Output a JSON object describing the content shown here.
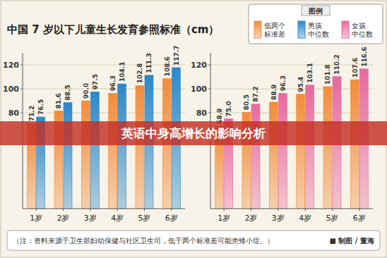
{
  "title": "中国 7 岁以下儿童生长发育参照标准（cm）",
  "legend_title": "图例",
  "banner": "英语中身高增长的影响分析",
  "note": "（注：资料来源于卫生部妇幼保健与社区卫生司，低于两个标准差可能患矮小症。）",
  "credit": "■ 制图 / 董海",
  "chart_data": [
    {
      "type": "bar",
      "categories": [
        "1岁",
        "2岁",
        "3岁",
        "4岁",
        "5岁",
        "6岁"
      ],
      "series": [
        {
          "name": "低两个标准差",
          "color": "#f28c3a",
          "values": [
            71.2,
            81.6,
            90.0,
            96.3,
            102.8,
            108.6
          ],
          "value_labels": [
            "71.2",
            "81.6",
            "90.0",
            "96.3",
            "102.8",
            "108.6"
          ]
        },
        {
          "name": "男孩中位数",
          "color": "#2c87c9",
          "values": [
            76.5,
            88.5,
            97.5,
            104.1,
            111.3,
            117.7
          ],
          "value_labels": [
            "76.5",
            "88.5",
            "97.5",
            "104.1",
            "111.3",
            "117.7"
          ]
        }
      ],
      "ylim": [
        0,
        130
      ],
      "yticks": [
        80,
        100,
        120
      ],
      "grid": true,
      "data_labels": true,
      "legend": "top-right"
    },
    {
      "type": "bar",
      "categories": [
        "1岁",
        "2岁",
        "3岁",
        "4岁",
        "5岁",
        "6岁"
      ],
      "series": [
        {
          "name": "低两个标准差",
          "color": "#f28c3a",
          "values": [
            68.9,
            80.5,
            88.9,
            95.4,
            101.8,
            107.6
          ],
          "value_labels": [
            "68.9",
            "80.5",
            "88.9",
            "95.4",
            "101.8",
            "107.6"
          ]
        },
        {
          "name": "女孩中位数",
          "color": "#e8699f",
          "values": [
            75.0,
            87.2,
            96.3,
            103.1,
            110.2,
            116.6
          ],
          "value_labels": [
            "75.0",
            "87.2",
            "96.3",
            "103.1",
            "110.2",
            "116.6"
          ]
        }
      ],
      "ylim": [
        0,
        130
      ],
      "yticks": [
        80,
        100,
        120
      ],
      "grid": true,
      "data_labels": true,
      "legend": "top-right"
    }
  ]
}
